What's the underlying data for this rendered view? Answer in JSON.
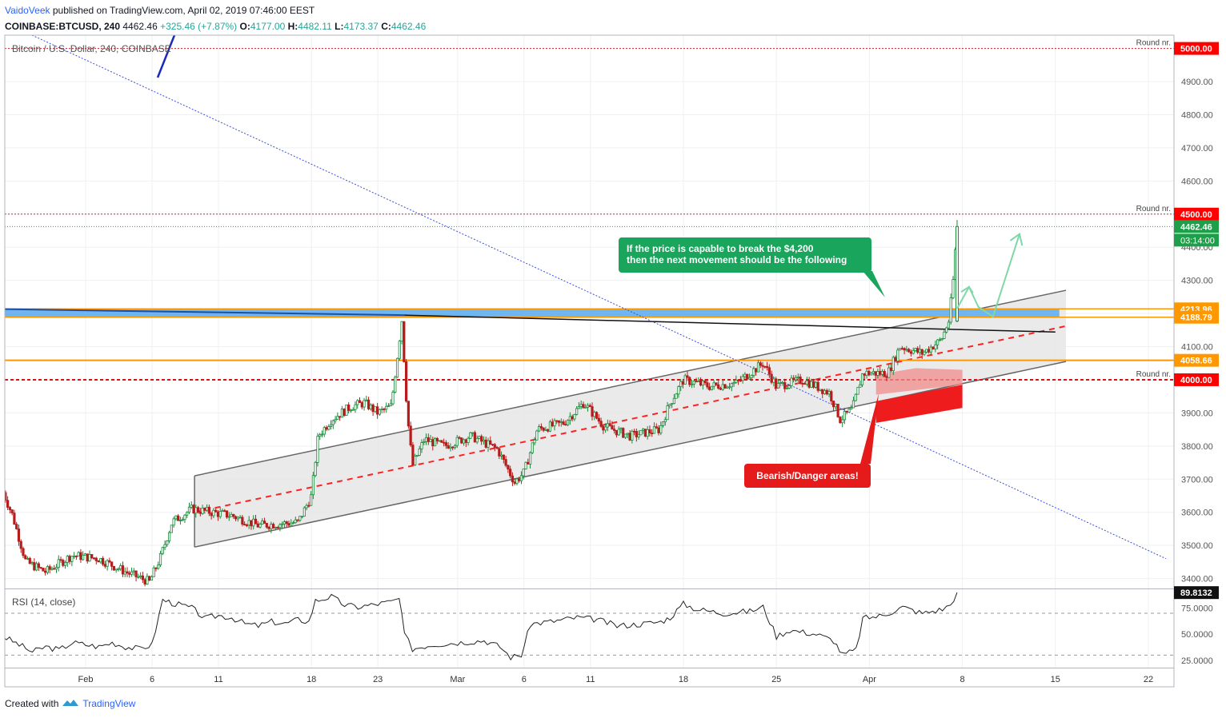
{
  "header": {
    "author": "VaidoVeek",
    "published": "published on TradingView.com, April 02, 2019 07:46:00 EEST",
    "symbol": "COINBASE:BTCUSD, 240",
    "last": "4462.46",
    "change": "+325.46 (+7.87%)",
    "o_label": "O:",
    "o_value": "4177.00",
    "h_label": "H:",
    "h_value": "4482.11",
    "l_label": "L:",
    "l_value": "4173.37",
    "c_label": "C:",
    "c_value": "4462.46"
  },
  "chart_title": "Bitcoin / U.S. Dollar, 240, COINBASE",
  "footer": {
    "created_with": "Created with",
    "brand": "TradingView"
  },
  "colors": {
    "up": "#1a8a3a",
    "down": "#b71c1c",
    "grid": "#eef0f3",
    "red_label": "#ff0000",
    "orange_label": "#ff9800",
    "green_label": "#1e9f4a",
    "blue_zone": "#6fb6f0",
    "callout_green": "#1aa55c",
    "callout_red": "#e51a1a"
  },
  "chart_data": {
    "type": "candlestick",
    "price_axis": {
      "ylim": [
        3370,
        5040
      ],
      "ticks": [
        3400,
        3500,
        3600,
        3700,
        3800,
        3900,
        4000,
        4100,
        4200,
        4300,
        4400,
        4500,
        4600,
        4700,
        4800,
        4900,
        5000
      ],
      "tick_labels": [
        "3400.00",
        "3500.00",
        "3600.00",
        "3700.00",
        "3800.00",
        "3900.00",
        "4000.00",
        "4100.00",
        "4200.00",
        "4300.00",
        "4400.00",
        "4500.00",
        "4600.00",
        "4700.00",
        "4800.00",
        "4900.00",
        "5000.00"
      ]
    },
    "time_axis": {
      "labels": [
        "Feb",
        "6",
        "11",
        "18",
        "23",
        "Mar",
        "6",
        "11",
        "18",
        "25",
        "Apr",
        "8",
        "15",
        "22"
      ],
      "days": [
        0,
        5,
        10,
        17,
        22,
        28,
        33,
        38,
        45,
        52,
        59,
        66,
        73,
        80
      ]
    },
    "price_path": [
      [
        -6.2,
        3660
      ],
      [
        -5.5,
        3590
      ],
      [
        -4.5,
        3450
      ],
      [
        -3,
        3420
      ],
      [
        -1,
        3470
      ],
      [
        1,
        3460
      ],
      [
        3,
        3420
      ],
      [
        4.8,
        3390
      ],
      [
        5.6,
        3460
      ],
      [
        6.5,
        3570
      ],
      [
        8,
        3610
      ],
      [
        11,
        3590
      ],
      [
        13,
        3560
      ],
      [
        16,
        3570
      ],
      [
        17,
        3650
      ],
      [
        17.5,
        3830
      ],
      [
        18.5,
        3880
      ],
      [
        20,
        3920
      ],
      [
        21,
        3930
      ],
      [
        22,
        3900
      ],
      [
        23,
        3920
      ],
      [
        23.8,
        4180
      ],
      [
        24.2,
        3900
      ],
      [
        24.6,
        3740
      ],
      [
        25.5,
        3820
      ],
      [
        27,
        3800
      ],
      [
        29,
        3830
      ],
      [
        31,
        3790
      ],
      [
        32.3,
        3690
      ],
      [
        33,
        3720
      ],
      [
        34,
        3850
      ],
      [
        36,
        3870
      ],
      [
        37.5,
        3930
      ],
      [
        39,
        3860
      ],
      [
        41,
        3830
      ],
      [
        43.2,
        3850
      ],
      [
        44,
        3930
      ],
      [
        45,
        4000
      ],
      [
        47,
        3980
      ],
      [
        49,
        3990
      ],
      [
        51,
        4050
      ],
      [
        52,
        3980
      ],
      [
        54,
        4000
      ],
      [
        56,
        3960
      ],
      [
        56.8,
        3880
      ],
      [
        57.7,
        3910
      ],
      [
        58.5,
        4020
      ],
      [
        60.4,
        4020
      ],
      [
        61.3,
        4100
      ],
      [
        63,
        4080
      ],
      [
        64.4,
        4120
      ],
      [
        65,
        4180
      ],
      [
        65.3,
        4300
      ],
      [
        65.6,
        4462
      ]
    ],
    "last_price": {
      "value": 4462.46,
      "label": "4462.46",
      "countdown": "03:14:00"
    },
    "levels": [
      {
        "price": 5000,
        "label": "5000.00",
        "note": "Round nr."
      },
      {
        "price": 4500,
        "label": "4500.00",
        "note": "Round nr."
      },
      {
        "price": 4213.96,
        "label": "4213.96"
      },
      {
        "price": 4188.79,
        "label": "4188.79"
      },
      {
        "price": 4058.66,
        "label": "4058.66"
      },
      {
        "price": 4000,
        "label": "4000.00",
        "note": "Round nr."
      }
    ],
    "annotations": [
      "If the price is capable to break the $4,200",
      "then the next movement should be the following",
      "Bearish/Danger areas!"
    ],
    "rsi": {
      "label": "RSI (14, close)",
      "ylim": [
        18,
        93
      ],
      "ticks": [
        25,
        50,
        75
      ],
      "tick_labels": [
        "25.0000",
        "50.0000",
        "75.0000"
      ],
      "bands": [
        30,
        70
      ],
      "last": {
        "value": 89.8132,
        "label": "89.8132"
      },
      "path": [
        [
          -6.2,
          48
        ],
        [
          -5,
          40
        ],
        [
          -4,
          33
        ],
        [
          -3,
          38
        ],
        [
          -2,
          35
        ],
        [
          -1,
          42
        ],
        [
          0,
          40
        ],
        [
          1,
          38
        ],
        [
          2,
          42
        ],
        [
          3,
          38
        ],
        [
          4,
          36
        ],
        [
          5,
          40
        ],
        [
          5.8,
          83
        ],
        [
          6.5,
          80
        ],
        [
          8,
          75
        ],
        [
          9,
          65
        ],
        [
          10,
          68
        ],
        [
          11,
          66
        ],
        [
          12,
          60
        ],
        [
          13,
          58
        ],
        [
          14,
          62
        ],
        [
          15,
          60
        ],
        [
          16,
          64
        ],
        [
          16.8,
          62
        ],
        [
          17.3,
          82
        ],
        [
          18.5,
          86
        ],
        [
          19.5,
          78
        ],
        [
          20.5,
          76
        ],
        [
          21.5,
          78
        ],
        [
          22.5,
          80
        ],
        [
          23,
          81
        ],
        [
          23.6,
          84
        ],
        [
          24,
          50
        ],
        [
          24.6,
          36
        ],
        [
          26,
          40
        ],
        [
          28,
          42
        ],
        [
          30,
          44
        ],
        [
          31.2,
          38
        ],
        [
          32,
          28
        ],
        [
          32.8,
          30
        ],
        [
          33.5,
          60
        ],
        [
          35,
          62
        ],
        [
          37,
          66
        ],
        [
          38.5,
          64
        ],
        [
          40,
          58
        ],
        [
          42,
          60
        ],
        [
          43.3,
          62
        ],
        [
          44,
          66
        ],
        [
          45,
          79
        ],
        [
          46,
          74
        ],
        [
          48,
          70
        ],
        [
          50,
          72
        ],
        [
          51,
          76
        ],
        [
          52,
          48
        ],
        [
          53,
          54
        ],
        [
          55,
          50
        ],
        [
          56.3,
          44
        ],
        [
          57,
          30
        ],
        [
          58,
          35
        ],
        [
          58.5,
          65
        ],
        [
          60,
          68
        ],
        [
          61.5,
          76
        ],
        [
          63,
          70
        ],
        [
          64.5,
          74
        ],
        [
          65.1,
          78
        ],
        [
          65.6,
          90
        ]
      ]
    }
  }
}
